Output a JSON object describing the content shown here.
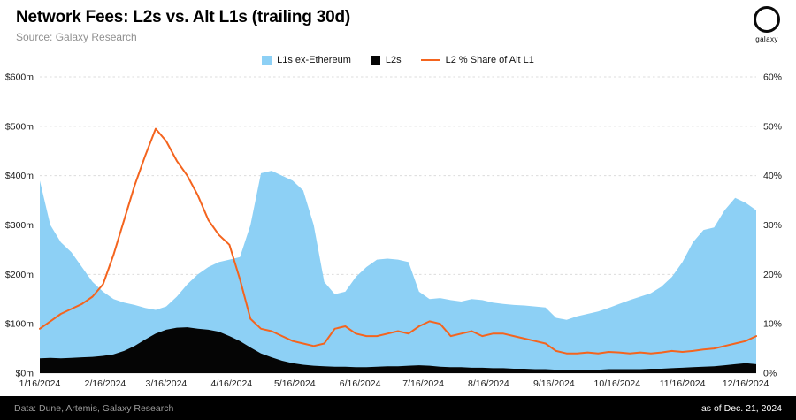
{
  "header": {
    "title": "Network Fees: L2s vs. Alt L1s (trailing 30d)",
    "subtitle": "Source: Galaxy Research",
    "logo_text": "galaxy"
  },
  "footer": {
    "left": "Data: Dune, Artemis, Galaxy Research",
    "right": "as of Dec. 21, 2024"
  },
  "colors": {
    "l1_area": "#8DD0F5",
    "l2_area": "#050505",
    "share_line": "#F4641E",
    "gridline": "#dcdcdc",
    "axis_text": "#1a1a1a"
  },
  "chart_data": {
    "type": "area",
    "title": "Network Fees: L2s vs. Alt L1s (trailing 30d)",
    "grid": true,
    "legend_position": "top-center",
    "x": [
      "2024-01-16",
      "2024-01-21",
      "2024-01-26",
      "2024-01-31",
      "2024-02-05",
      "2024-02-10",
      "2024-02-15",
      "2024-02-20",
      "2024-02-25",
      "2024-03-01",
      "2024-03-06",
      "2024-03-11",
      "2024-03-16",
      "2024-03-21",
      "2024-03-26",
      "2024-03-31",
      "2024-04-05",
      "2024-04-10",
      "2024-04-15",
      "2024-04-20",
      "2024-04-25",
      "2024-04-30",
      "2024-05-05",
      "2024-05-10",
      "2024-05-15",
      "2024-05-20",
      "2024-05-25",
      "2024-05-30",
      "2024-06-04",
      "2024-06-09",
      "2024-06-14",
      "2024-06-19",
      "2024-06-24",
      "2024-06-29",
      "2024-07-04",
      "2024-07-09",
      "2024-07-14",
      "2024-07-19",
      "2024-07-24",
      "2024-07-29",
      "2024-08-03",
      "2024-08-08",
      "2024-08-13",
      "2024-08-18",
      "2024-08-23",
      "2024-08-28",
      "2024-09-02",
      "2024-09-07",
      "2024-09-12",
      "2024-09-17",
      "2024-09-22",
      "2024-09-27",
      "2024-10-02",
      "2024-10-07",
      "2024-10-12",
      "2024-10-17",
      "2024-10-22",
      "2024-10-27",
      "2024-11-01",
      "2024-11-06",
      "2024-11-11",
      "2024-11-16",
      "2024-11-21",
      "2024-11-26",
      "2024-12-01",
      "2024-12-06",
      "2024-12-11",
      "2024-12-16",
      "2024-12-21"
    ],
    "series": [
      {
        "name": "L1s ex-Ethereum",
        "kind": "area",
        "axis": "left",
        "color": "#8DD0F5",
        "values": [
          390,
          300,
          265,
          245,
          215,
          185,
          165,
          150,
          143,
          138,
          132,
          128,
          135,
          155,
          180,
          200,
          215,
          225,
          230,
          235,
          300,
          405,
          410,
          400,
          390,
          370,
          300,
          185,
          160,
          165,
          195,
          215,
          230,
          232,
          230,
          225,
          165,
          150,
          152,
          148,
          145,
          150,
          148,
          143,
          140,
          138,
          137,
          135,
          133,
          112,
          108,
          115,
          120,
          125,
          132,
          140,
          148,
          155,
          162,
          175,
          195,
          225,
          265,
          290,
          295,
          330,
          355,
          345,
          330
        ]
      },
      {
        "name": "L2s",
        "kind": "area",
        "axis": "left",
        "color": "#050505",
        "values": [
          30,
          31,
          30,
          31,
          32,
          33,
          35,
          38,
          45,
          55,
          68,
          80,
          88,
          92,
          93,
          90,
          88,
          84,
          75,
          65,
          52,
          40,
          32,
          25,
          20,
          17,
          15,
          14,
          13,
          13,
          12,
          12,
          13,
          14,
          14,
          15,
          16,
          15,
          13,
          12,
          12,
          11,
          11,
          10,
          10,
          9,
          9,
          8,
          8,
          7,
          7,
          7,
          7,
          7,
          8,
          8,
          8,
          8,
          9,
          9,
          10,
          11,
          12,
          13,
          14,
          16,
          18,
          20,
          18
        ]
      },
      {
        "name": "L2 % Share of Alt L1",
        "kind": "line",
        "axis": "right",
        "color": "#F4641E",
        "values": [
          9,
          10.5,
          12,
          13,
          14,
          15.5,
          18,
          24,
          31,
          38,
          44,
          49.5,
          47,
          43,
          40,
          36,
          31,
          28,
          26,
          19,
          11,
          9,
          8.5,
          7.5,
          6.5,
          6,
          5.5,
          6,
          9,
          9.5,
          8,
          7.5,
          7.5,
          8,
          8.5,
          8,
          9.5,
          10.5,
          10,
          7.5,
          8,
          8.5,
          7.5,
          8,
          8,
          7.5,
          7,
          6.5,
          6,
          4.5,
          4,
          4,
          4.2,
          4,
          4.3,
          4.2,
          4,
          4.2,
          4,
          4.2,
          4.5,
          4.3,
          4.5,
          4.8,
          5,
          5.5,
          6,
          6.5,
          7.5
        ]
      }
    ],
    "left_axis": {
      "min": 0,
      "max": 600,
      "tick_labels": [
        "$0m",
        "$100m",
        "$200m",
        "$300m",
        "$400m",
        "$500m",
        "$600m"
      ]
    },
    "right_axis": {
      "min": 0,
      "max": 60,
      "tick_labels": [
        "0%",
        "10%",
        "20%",
        "30%",
        "40%",
        "50%",
        "60%"
      ]
    },
    "x_ticks": [
      {
        "label": "1/16/2024",
        "date": "2024-01-16"
      },
      {
        "label": "2/16/2024",
        "date": "2024-02-16"
      },
      {
        "label": "3/16/2024",
        "date": "2024-03-16"
      },
      {
        "label": "4/16/2024",
        "date": "2024-04-16"
      },
      {
        "label": "5/16/2024",
        "date": "2024-05-16"
      },
      {
        "label": "6/16/2024",
        "date": "2024-06-16"
      },
      {
        "label": "7/16/2024",
        "date": "2024-07-16"
      },
      {
        "label": "8/16/2024",
        "date": "2024-08-16"
      },
      {
        "label": "9/16/2024",
        "date": "2024-09-16"
      },
      {
        "label": "10/16/2024",
        "date": "2024-10-16"
      },
      {
        "label": "11/16/2024",
        "date": "2024-11-16"
      },
      {
        "label": "12/16/2024",
        "date": "2024-12-16"
      }
    ]
  }
}
